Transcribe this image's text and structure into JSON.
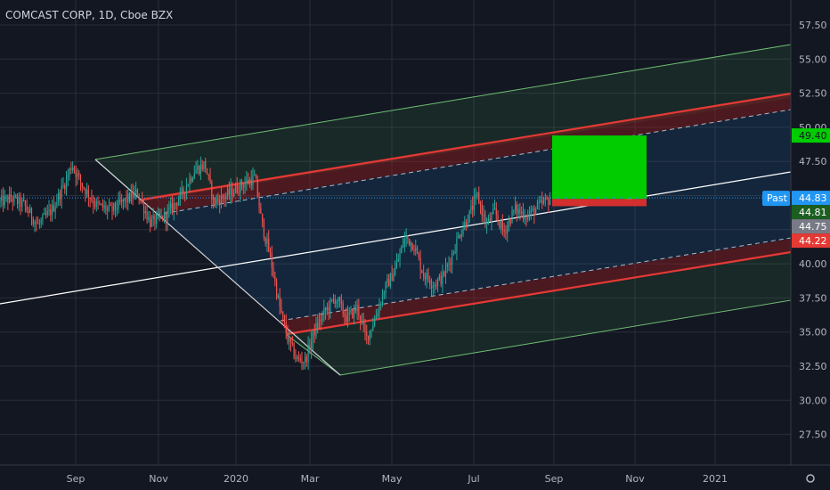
{
  "chart_data": {
    "type": "candlestick",
    "title": "COMCAST CORP, 1D, Cboe BZX",
    "colors": {
      "background": "#131722",
      "grid": "#2a2e39",
      "axis_text": "#b2b5be",
      "up": "#26a69a",
      "down": "#ef5350",
      "price_line": "#2196f3",
      "outer_channel": "#6fbf73",
      "inner_channel": "#e53935",
      "median": "#ffffff",
      "target_box": "#00cc00",
      "stop_box": "#d32f2f"
    },
    "y_axis": {
      "range": [
        25.5,
        59
      ],
      "ticks": [
        "57.50",
        "55.00",
        "52.50",
        "50.00",
        "47.50",
        "45.00",
        "42.50",
        "40.00",
        "37.50",
        "35.00",
        "32.50",
        "30.00",
        "27.50"
      ]
    },
    "x_axis": {
      "labels": [
        "Sep",
        "Nov",
        "2020",
        "Mar",
        "May",
        "Jul",
        "Sep",
        "Nov",
        "2021"
      ]
    },
    "price_labels": [
      {
        "text": "49.40",
        "value": 49.4,
        "color": "#00cc00",
        "text_color": "#131722"
      },
      {
        "text": "Past",
        "value": 44.83,
        "color": "#2196f3",
        "text_color": "#ffffff"
      },
      {
        "text": "44.83",
        "value": 44.83,
        "color": "#2196f3",
        "text_color": "#ffffff"
      },
      {
        "text": "44.81",
        "value": 44.81,
        "color": "#1b5e20",
        "text_color": "#ffffff"
      },
      {
        "text": "44.75",
        "value": 44.75,
        "color": "#787b86",
        "text_color": "#ffffff"
      },
      {
        "text": "44.22",
        "value": 44.22,
        "color": "#e53935",
        "text_color": "#ffffff"
      }
    ],
    "last_price": 44.83,
    "trade_box": {
      "entry": 44.75,
      "target": 49.4,
      "stop": 44.22
    },
    "price_anchors": [
      {
        "t": 0,
        "v": 44.5
      },
      {
        "t": 10,
        "v": 44.8
      },
      {
        "t": 22,
        "v": 44.3
      },
      {
        "t": 35,
        "v": 42.8
      },
      {
        "t": 48,
        "v": 44.0
      },
      {
        "t": 60,
        "v": 46.0
      },
      {
        "t": 66,
        "v": 47.3
      },
      {
        "t": 75,
        "v": 45.8
      },
      {
        "t": 88,
        "v": 44.3
      },
      {
        "t": 102,
        "v": 43.9
      },
      {
        "t": 116,
        "v": 44.7
      },
      {
        "t": 126,
        "v": 45.2
      },
      {
        "t": 138,
        "v": 43.0
      },
      {
        "t": 152,
        "v": 43.5
      },
      {
        "t": 166,
        "v": 45.0
      },
      {
        "t": 178,
        "v": 46.8
      },
      {
        "t": 188,
        "v": 47.3
      },
      {
        "t": 196,
        "v": 44.5
      },
      {
        "t": 208,
        "v": 45.0
      },
      {
        "t": 222,
        "v": 45.8
      },
      {
        "t": 234,
        "v": 46.3
      },
      {
        "t": 240,
        "v": 43.0
      },
      {
        "t": 248,
        "v": 40.5
      },
      {
        "t": 256,
        "v": 37.0
      },
      {
        "t": 264,
        "v": 34.5
      },
      {
        "t": 272,
        "v": 33.0
      },
      {
        "t": 280,
        "v": 32.9
      },
      {
        "t": 288,
        "v": 35.0
      },
      {
        "t": 298,
        "v": 36.5
      },
      {
        "t": 308,
        "v": 37.5
      },
      {
        "t": 318,
        "v": 36.0
      },
      {
        "t": 328,
        "v": 36.8
      },
      {
        "t": 336,
        "v": 34.5
      },
      {
        "t": 344,
        "v": 36.0
      },
      {
        "t": 352,
        "v": 38.0
      },
      {
        "t": 362,
        "v": 39.5
      },
      {
        "t": 372,
        "v": 42.0
      },
      {
        "t": 380,
        "v": 41.3
      },
      {
        "t": 388,
        "v": 39.3
      },
      {
        "t": 398,
        "v": 38.5
      },
      {
        "t": 406,
        "v": 39.0
      },
      {
        "t": 414,
        "v": 40.5
      },
      {
        "t": 422,
        "v": 42.3
      },
      {
        "t": 430,
        "v": 43.5
      },
      {
        "t": 438,
        "v": 45.0
      },
      {
        "t": 446,
        "v": 42.8
      },
      {
        "t": 454,
        "v": 43.8
      },
      {
        "t": 462,
        "v": 42.3
      },
      {
        "t": 472,
        "v": 44.0
      },
      {
        "t": 484,
        "v": 43.5
      },
      {
        "t": 496,
        "v": 44.3
      },
      {
        "t": 506,
        "v": 44.83
      }
    ]
  }
}
